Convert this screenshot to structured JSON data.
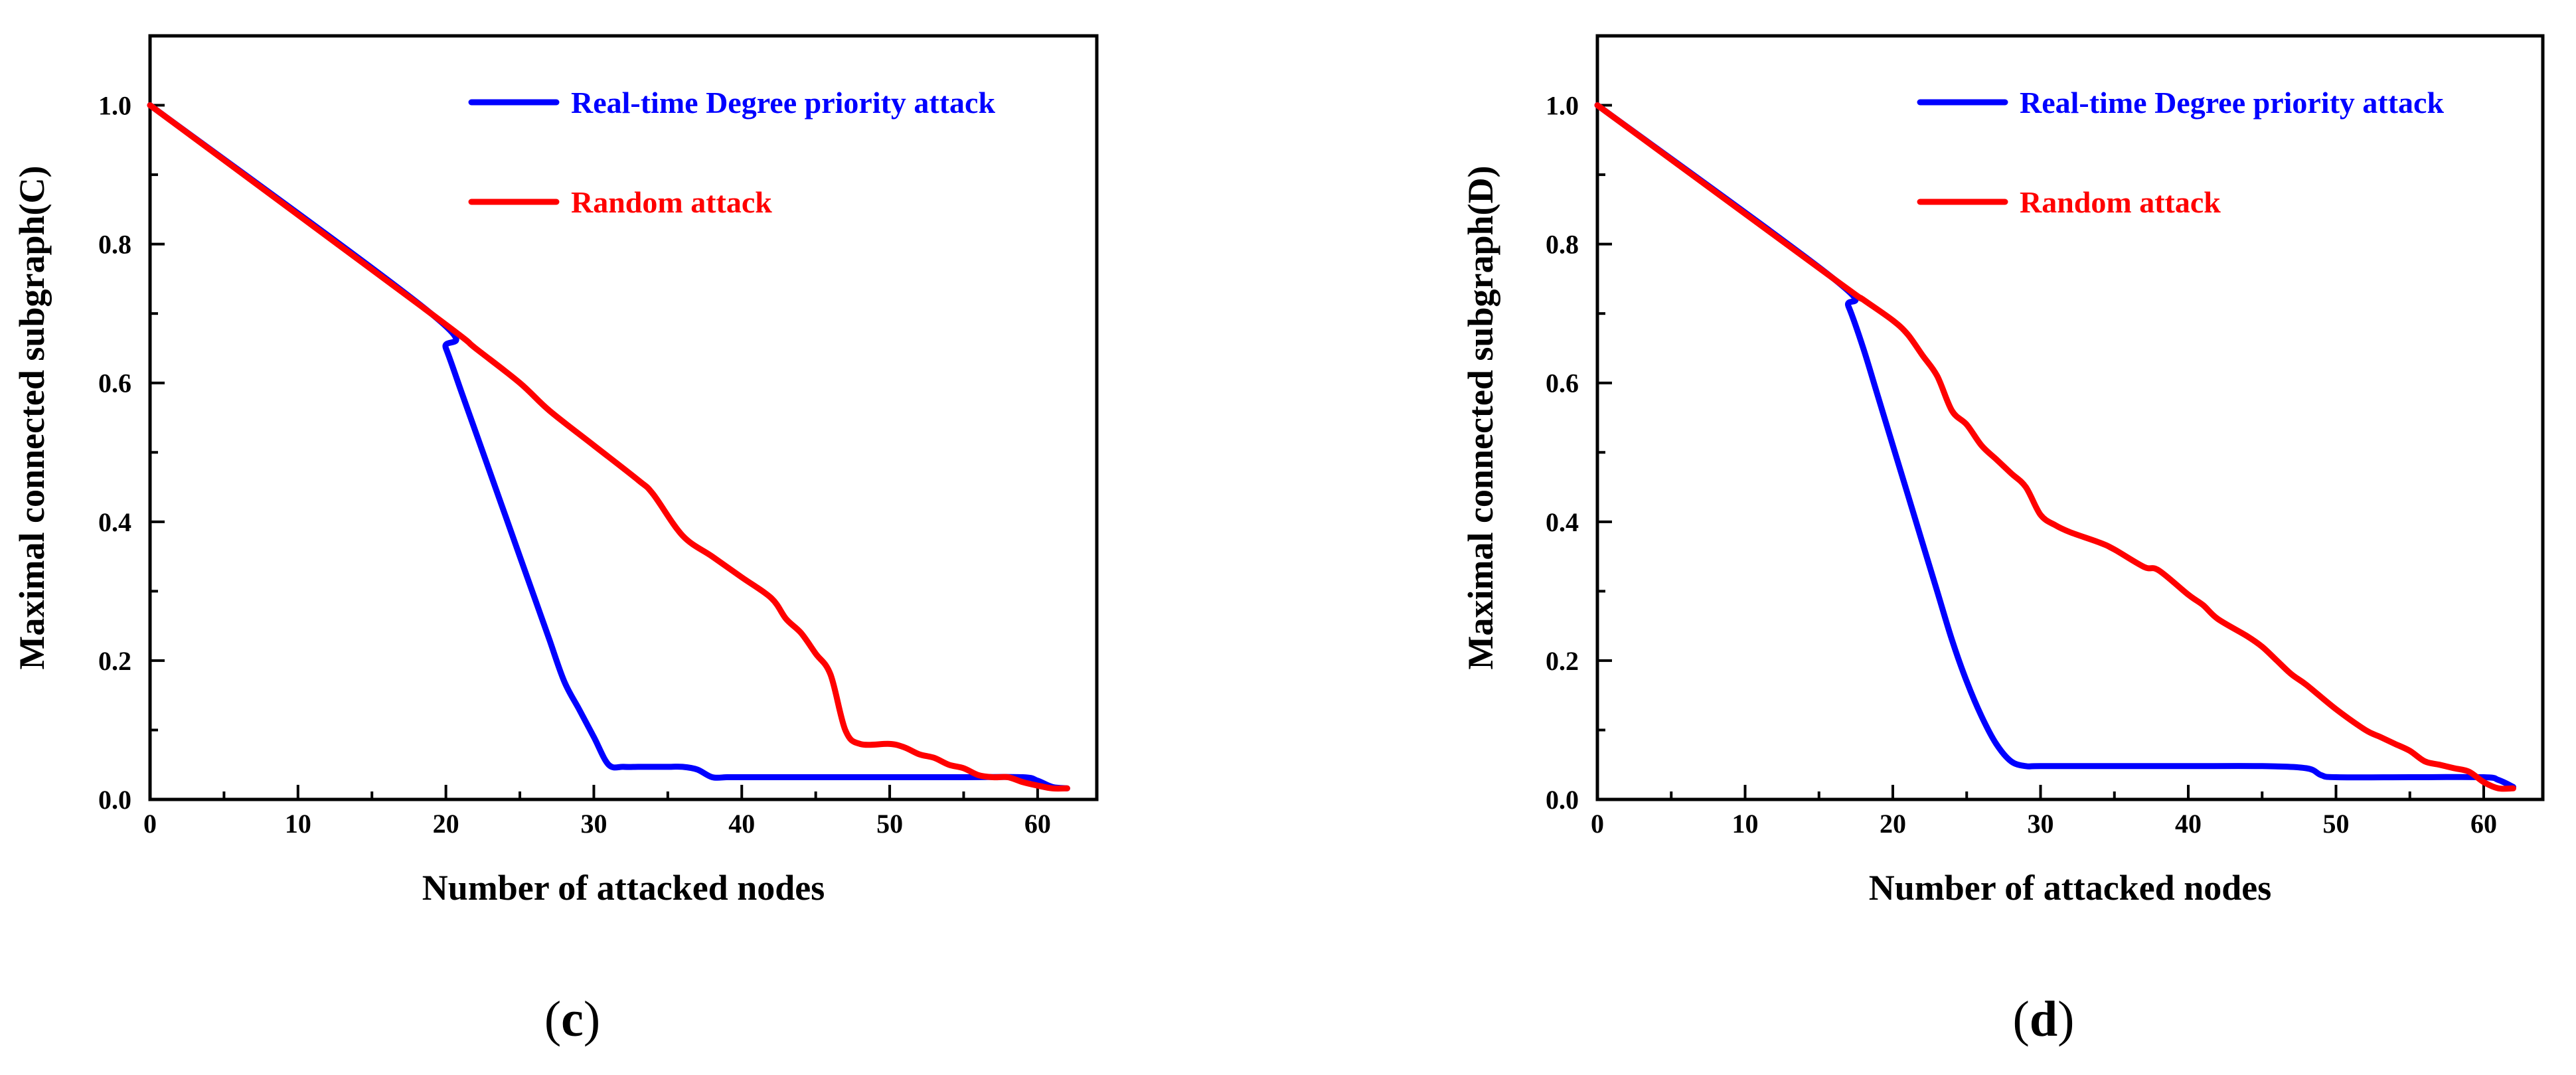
{
  "colors": {
    "blue": "#0000ff",
    "red": "#ff0000"
  },
  "chart_data": [
    {
      "type": "line",
      "panel_label": "(c)",
      "panel_letter": "c",
      "xlabel": "Number of attacked nodes",
      "ylabel": "Maximal connected subgraph(C)",
      "xlim": [
        0,
        64
      ],
      "ylim": [
        0,
        1.1
      ],
      "xticks": [
        0,
        10,
        20,
        30,
        40,
        50,
        60
      ],
      "yticks": [
        0.0,
        0.2,
        0.4,
        0.6,
        0.8,
        1.0
      ],
      "xtick_labels": [
        "0",
        "10",
        "20",
        "30",
        "40",
        "50",
        "60"
      ],
      "ytick_labels": [
        "0.0",
        "0.2",
        "0.4",
        "0.6",
        "0.8",
        "1.0"
      ],
      "grid": false,
      "legend_position": "top-right",
      "series": [
        {
          "name": "Real-time Degree priority attack",
          "color": "#0000ff",
          "x": [
            0,
            19,
            20,
            21,
            22,
            23,
            24,
            25,
            26,
            27,
            28,
            29,
            30,
            31,
            32,
            33,
            34,
            35,
            36,
            37,
            38,
            39,
            40,
            45,
            50,
            55,
            59,
            60,
            61,
            62
          ],
          "y": [
            1.0,
            0.7,
            0.65,
            0.59,
            0.53,
            0.47,
            0.41,
            0.35,
            0.29,
            0.23,
            0.17,
            0.13,
            0.09,
            0.05,
            0.047,
            0.047,
            0.047,
            0.047,
            0.047,
            0.043,
            0.032,
            0.032,
            0.032,
            0.032,
            0.032,
            0.032,
            0.032,
            0.027,
            0.018,
            0.016
          ]
        },
        {
          "name": "Random attack",
          "color": "#ff0000",
          "x": [
            0,
            19,
            22,
            25,
            27,
            30,
            33,
            34,
            36,
            38,
            40,
            42,
            43,
            44,
            45,
            46,
            47,
            48,
            50,
            51,
            52,
            53,
            54,
            55,
            56,
            57,
            58,
            59,
            60,
            61,
            62
          ],
          "y": [
            1.0,
            0.7,
            0.65,
            0.6,
            0.56,
            0.51,
            0.46,
            0.44,
            0.38,
            0.35,
            0.32,
            0.29,
            0.26,
            0.24,
            0.21,
            0.18,
            0.1,
            0.08,
            0.08,
            0.075,
            0.065,
            0.06,
            0.05,
            0.045,
            0.035,
            0.032,
            0.032,
            0.025,
            0.02,
            0.016,
            0.016
          ]
        }
      ]
    },
    {
      "type": "line",
      "panel_label": "(d)",
      "panel_letter": "d",
      "xlabel": "Number of attacked nodes",
      "ylabel": "Maximal connected subgraph(D)",
      "xlim": [
        0,
        64
      ],
      "ylim": [
        0,
        1.1
      ],
      "xticks": [
        0,
        10,
        20,
        30,
        40,
        50,
        60
      ],
      "yticks": [
        0.0,
        0.2,
        0.4,
        0.6,
        0.8,
        1.0
      ],
      "xtick_labels": [
        "0",
        "10",
        "20",
        "30",
        "40",
        "50",
        "60"
      ],
      "ytick_labels": [
        "0.0",
        "0.2",
        "0.4",
        "0.6",
        "0.8",
        "1.0"
      ],
      "grid": false,
      "legend_position": "top-right",
      "series": [
        {
          "name": "Real-time Degree priority attack",
          "color": "#0000ff",
          "x": [
            0,
            16,
            17,
            18,
            19,
            20,
            21,
            22,
            23,
            24,
            25,
            26,
            27,
            28,
            29,
            30,
            35,
            40,
            45,
            48,
            49,
            50,
            55,
            60,
            61,
            62
          ],
          "y": [
            1.0,
            0.75,
            0.71,
            0.65,
            0.58,
            0.51,
            0.44,
            0.37,
            0.3,
            0.23,
            0.17,
            0.12,
            0.08,
            0.055,
            0.048,
            0.048,
            0.048,
            0.048,
            0.048,
            0.045,
            0.035,
            0.032,
            0.032,
            0.032,
            0.028,
            0.018
          ]
        },
        {
          "name": "Random attack",
          "color": "#ff0000",
          "x": [
            0,
            16,
            18,
            20,
            21,
            22,
            23,
            24,
            25,
            26,
            27,
            28,
            29,
            30,
            31,
            32,
            34,
            35,
            37,
            38,
            40,
            41,
            42,
            44,
            45,
            46,
            47,
            48,
            50,
            52,
            53,
            54,
            55,
            56,
            57,
            58,
            59,
            60,
            61,
            62
          ],
          "y": [
            1.0,
            0.75,
            0.72,
            0.69,
            0.67,
            0.64,
            0.61,
            0.56,
            0.54,
            0.51,
            0.49,
            0.47,
            0.45,
            0.41,
            0.395,
            0.385,
            0.37,
            0.36,
            0.335,
            0.33,
            0.295,
            0.28,
            0.26,
            0.235,
            0.22,
            0.2,
            0.18,
            0.165,
            0.13,
            0.1,
            0.09,
            0.08,
            0.07,
            0.055,
            0.05,
            0.045,
            0.04,
            0.025,
            0.016,
            0.016
          ]
        }
      ]
    }
  ]
}
